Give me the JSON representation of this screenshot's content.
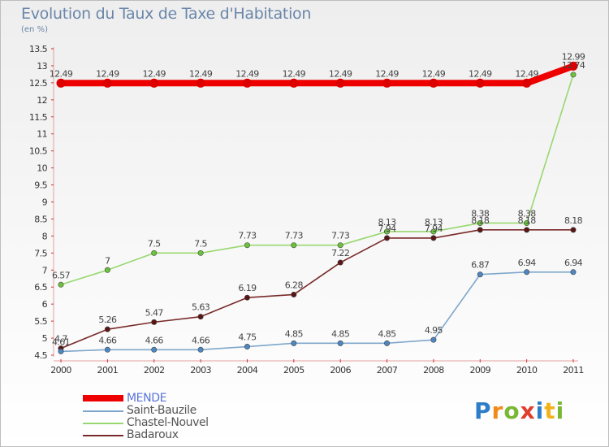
{
  "title": "Evolution du Taux de Taxe d'Habitation",
  "unit_label": "(en %)",
  "brand": {
    "letters": [
      "P",
      "r",
      "o",
      "x",
      "i",
      "t",
      "i"
    ],
    "colors": [
      "#2f7dc9",
      "#f28a1a",
      "#78b833",
      "#e23c2c",
      "#2f7dc9",
      "#f2b21a",
      "#78b833"
    ]
  },
  "chart_data": {
    "type": "line",
    "title": "Evolution du Taux de Taxe d'Habitation",
    "ylabel": "(en %)",
    "xlabel": "",
    "x": [
      "2000",
      "2001",
      "2002",
      "2003",
      "2004",
      "2005",
      "2006",
      "2007",
      "2008",
      "2009",
      "2010",
      "2011"
    ],
    "ylim": [
      4.5,
      13.5
    ],
    "yticks": [
      "4.5",
      "5",
      "5.5",
      "6",
      "6.5",
      "7",
      "7.5",
      "8",
      "8.5",
      "9",
      "9.5",
      "10",
      "10.5",
      "11",
      "11.5",
      "12",
      "12.5",
      "13",
      "13.5"
    ],
    "grid": false,
    "legend_position": "bottom-left",
    "series": [
      {
        "name": "MENDE",
        "color": "#ee0000",
        "values": [
          12.49,
          12.49,
          12.49,
          12.49,
          12.49,
          12.49,
          12.49,
          12.49,
          12.49,
          12.49,
          12.49,
          12.99
        ],
        "labels": [
          "12.49",
          "12.49",
          "12.49",
          "12.49",
          "12.49",
          "12.49",
          "12.49",
          "12.49",
          "12.49",
          "12.49",
          "12.49",
          "12.99"
        ]
      },
      {
        "name": "Saint-Bauzile",
        "color": "#7fa7cc",
        "values": [
          4.61,
          4.66,
          4.66,
          4.66,
          4.75,
          4.85,
          4.85,
          4.85,
          4.95,
          6.87,
          6.94,
          6.94
        ],
        "labels": [
          "4.61",
          "4.66",
          "4.66",
          "4.66",
          "4.75",
          "4.85",
          "4.85",
          "4.85",
          "4.95",
          "6.87",
          "6.94",
          "6.94"
        ]
      },
      {
        "name": "Chastel-Nouvel",
        "color": "#98d870",
        "values": [
          6.57,
          7,
          7.5,
          7.5,
          7.73,
          7.73,
          7.73,
          8.13,
          8.13,
          8.38,
          8.38,
          12.74
        ],
        "labels": [
          "6.57",
          "7",
          "7.5",
          "7.5",
          "7.73",
          "7.73",
          "7.73",
          "8.13",
          "8.13",
          "8.38",
          "8.38",
          "12.74"
        ]
      },
      {
        "name": "Badaroux",
        "color": "#7a2a2a",
        "values": [
          4.7,
          5.26,
          5.47,
          5.63,
          6.19,
          6.28,
          7.22,
          7.94,
          7.94,
          8.18,
          8.18,
          8.18
        ],
        "labels": [
          "4.7",
          "5.26",
          "5.47",
          "5.63",
          "6.19",
          "6.28",
          "7.22",
          "7.94",
          "7.94",
          "8.18",
          "8.18",
          "8.18"
        ]
      }
    ]
  }
}
